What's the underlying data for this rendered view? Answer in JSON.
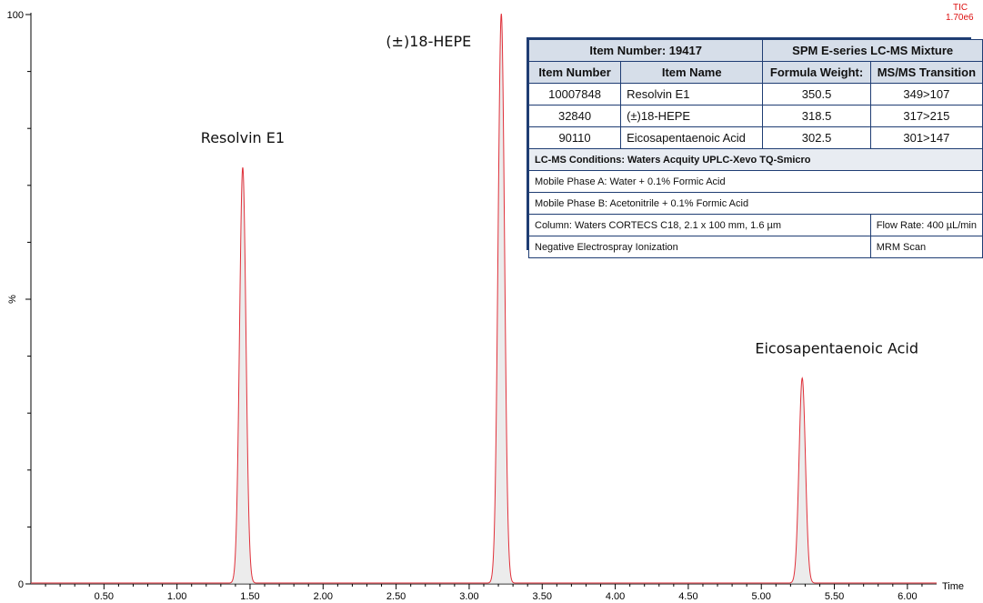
{
  "chart_data": {
    "type": "line",
    "x_axis_title": "Time",
    "y_axis_title": "%",
    "xlim": [
      0.0,
      6.2
    ],
    "ylim": [
      0,
      100
    ],
    "x_ticks": [
      "0.50",
      "1.00",
      "1.50",
      "2.00",
      "2.50",
      "3.00",
      "3.50",
      "4.00",
      "4.50",
      "5.00",
      "5.50",
      "6.00"
    ],
    "x_tick_values": [
      0.5,
      1.0,
      1.5,
      2.0,
      2.5,
      3.0,
      3.5,
      4.0,
      4.5,
      5.0,
      5.5,
      6.0
    ],
    "y_ticks": [
      "0",
      "100"
    ],
    "y_tick_values": [
      0,
      100
    ],
    "line_color": "#e0303a",
    "fill_color": "#d9d9d9",
    "peaks": [
      {
        "label": "Resolvin E1",
        "rt": 1.45,
        "height": 73
      },
      {
        "label": "(±)18-HEPE",
        "rt": 3.22,
        "height": 100
      },
      {
        "label": "Eicosapentaenoic Acid",
        "rt": 5.28,
        "height": 36
      }
    ],
    "corner_text": {
      "line1": "TIC",
      "line2": "1.70e6"
    }
  },
  "table": {
    "title_left": "Item Number: 19417",
    "title_right": "SPM E-series LC-MS Mixture",
    "headers": [
      "Item Number",
      "Item Name",
      "Formula Weight:",
      "MS/MS Transition"
    ],
    "rows": [
      [
        "10007848",
        "Resolvin E1",
        "350.5",
        "349>107"
      ],
      [
        "32840",
        "(±)18-HEPE",
        "318.5",
        "317>215"
      ],
      [
        "90110",
        "Eicosapentaenoic Acid",
        "302.5",
        "301>147"
      ]
    ],
    "conditions_title": "LC-MS Conditions: Waters Acquity UPLC-Xevo TQ-Smicro",
    "mobile_a": "Mobile Phase A: Water + 0.1% Formic Acid",
    "mobile_b": "Mobile Phase B: Acetonitrile + 0.1% Formic Acid",
    "column": "Column: Waters CORTECS C18, 2.1 x 100 mm, 1.6 µm",
    "flow_rate": "Flow Rate: 400 µL/min",
    "ionization": "Negative Electrospray Ionization",
    "scan": "MRM Scan"
  }
}
